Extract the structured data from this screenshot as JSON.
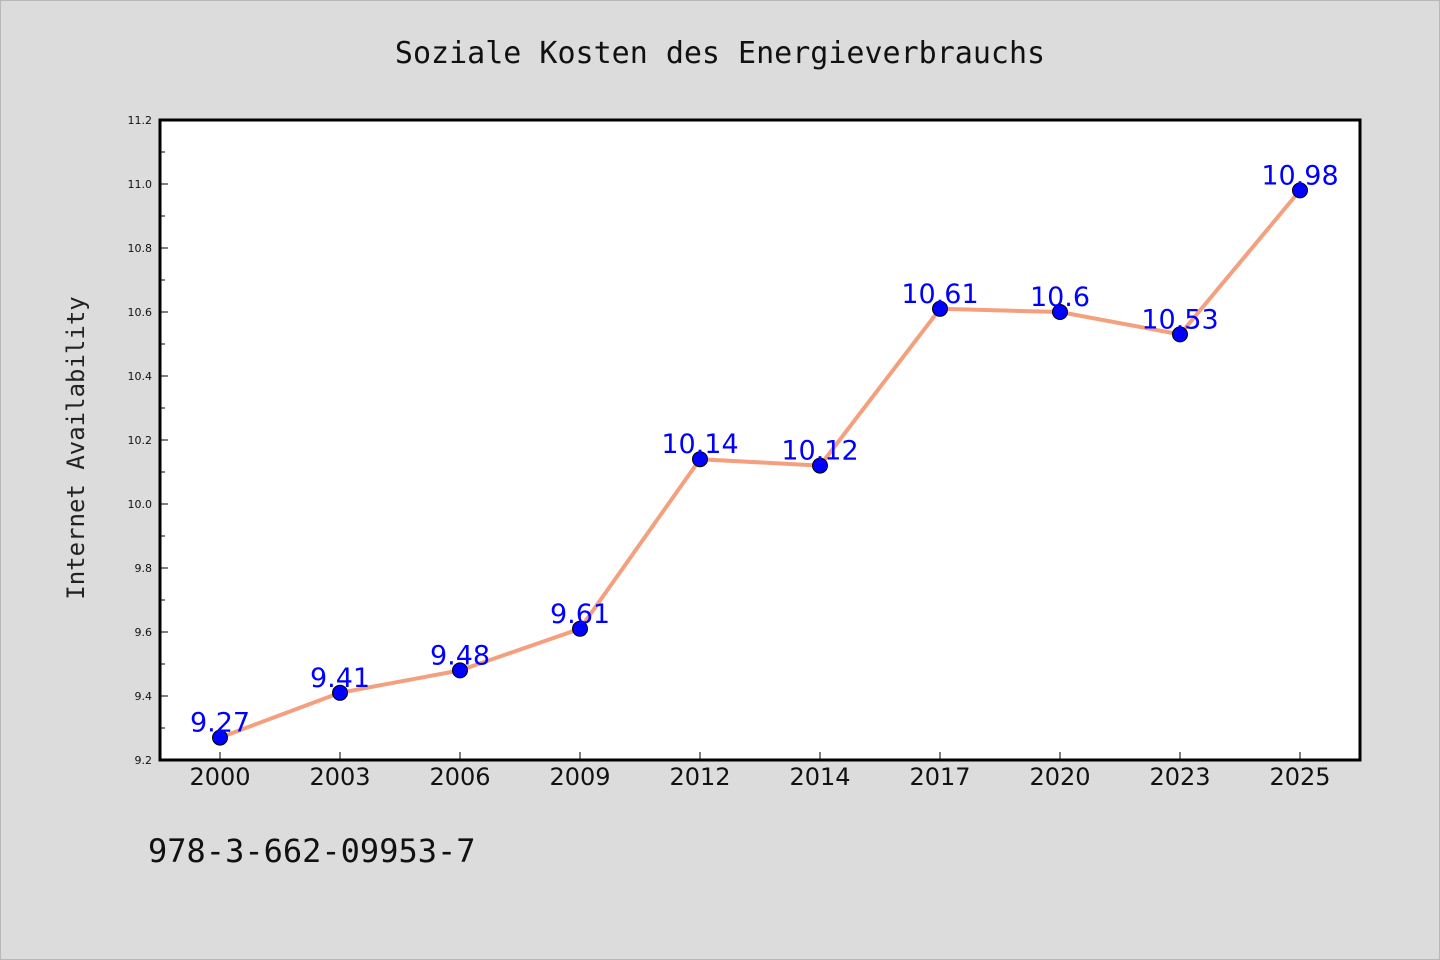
{
  "chart_data": {
    "type": "line",
    "title": "Soziale Kosten des Energieverbrauchs",
    "xlabel": "",
    "ylabel": "Internet Availability",
    "categories": [
      "2000",
      "2003",
      "2006",
      "2009",
      "2012",
      "2014",
      "2017",
      "2020",
      "2023",
      "2025"
    ],
    "series": [
      {
        "values": [
          9.27,
          9.41,
          9.48,
          9.61,
          10.14,
          10.12,
          10.61,
          10.6,
          10.53,
          10.98
        ],
        "labels": [
          "9.27",
          "9.41",
          "9.48",
          "9.61",
          "10.14",
          "10.12",
          "10.61",
          "10.6",
          "10.53",
          "10.98"
        ],
        "line_color": "#f4a07e",
        "marker_color": "#0000ff"
      }
    ],
    "ylim": [
      9.2,
      11.2
    ],
    "yticks": [
      "9.2",
      "9.4",
      "9.6",
      "9.8",
      "10.0",
      "10.2",
      "10.4",
      "10.6",
      "10.8",
      "11.0",
      "11.2"
    ],
    "grid": false,
    "legend": "none"
  },
  "footer_text": "978-3-662-09953-7",
  "colors": {
    "background": "#dcdcdc",
    "plot_background": "#ffffff",
    "line": "#f4a07e",
    "marker": "#0000ff",
    "data_label": "#0000ff"
  }
}
